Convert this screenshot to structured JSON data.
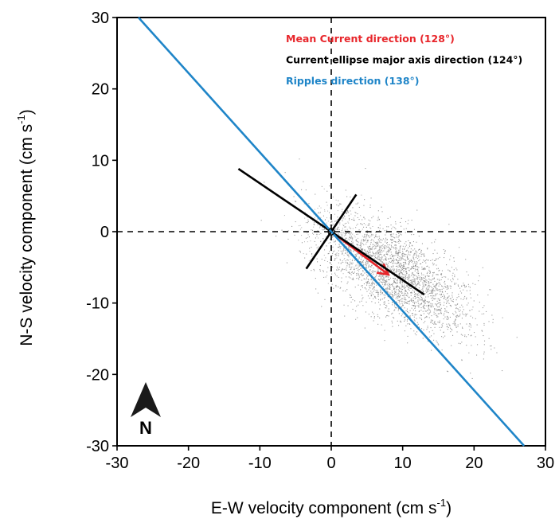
{
  "chart_data": {
    "type": "scatter",
    "xlabel": "E-W velocity component (cm s",
    "xlabel_sup": "-1",
    "xlabel_end": ")",
    "ylabel": "N-S velocity component (cm s",
    "ylabel_sup": "-1",
    "ylabel_end": ")",
    "xlim": [
      -30,
      30
    ],
    "ylim": [
      -30,
      30
    ],
    "xticks": [
      -30,
      -20,
      -10,
      0,
      10,
      20,
      30
    ],
    "yticks": [
      -30,
      -20,
      -10,
      0,
      10,
      20,
      30
    ],
    "xtick_labels": [
      "-30",
      "-20",
      "-10",
      "0",
      "10",
      "20",
      "30"
    ],
    "ytick_labels": [
      "-30",
      "-20",
      "-10",
      "0",
      "10",
      "20",
      "30"
    ],
    "grid": false,
    "zero_lines": "dashed",
    "legend_placement": "top-right",
    "lines": [
      {
        "label": "Mean Current direction (128°)",
        "color": "#e8262b",
        "kind": "arrow",
        "direction_deg": 128,
        "x": [
          0,
          8
        ],
        "y": [
          0,
          -6
        ]
      },
      {
        "label": "Current ellipse major axis direction (124°)",
        "color": "#000000",
        "kind": "segment",
        "direction_deg": 124,
        "x": [
          -13,
          13
        ],
        "y": [
          8.8,
          -8.8
        ]
      },
      {
        "label": "",
        "color": "#000000",
        "kind": "segment",
        "x": [
          -3.5,
          3.5
        ],
        "y": [
          -5.2,
          5.2
        ]
      },
      {
        "label": "Ripples direction (138°)",
        "color": "#1f85c8",
        "kind": "segment",
        "direction_deg": 138,
        "x": [
          -27,
          27
        ],
        "y": [
          30,
          -30
        ]
      }
    ],
    "scatter_cloud": {
      "color": "#7a7a7a",
      "center": [
        9,
        -6
      ],
      "description_points": "dense elongated cloud of velocity samples",
      "semi_major": 10,
      "semi_minor": 4,
      "direction_deg": 124
    }
  },
  "north_arrow": {
    "label": "N",
    "icon": "north-arrow-icon"
  }
}
